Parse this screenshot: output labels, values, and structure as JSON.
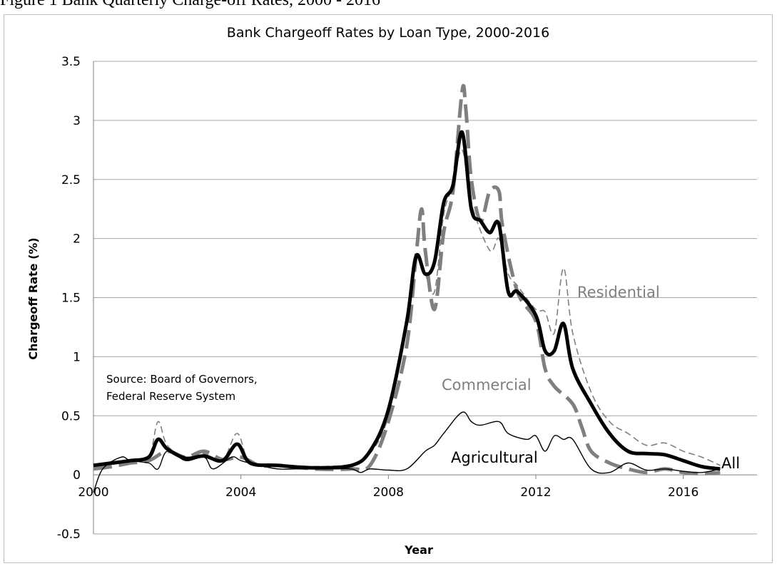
{
  "caption": "Figure 1 Bank Quarterly Charge-off Rates, 2000 - 2016",
  "note_lines": [
    "Source: Board of Governors,",
    "Federal Reserve System"
  ],
  "colors": {
    "black": "#000000",
    "gray": "#7f7f7f",
    "grid": "#a6a6a6"
  },
  "chart_data": {
    "type": "line",
    "title": "Bank Chargeoff Rates by Loan Type, 2000-2016",
    "xlabel": "Year",
    "ylabel": "Chargeoff Rate (%)",
    "xlim": [
      2000,
      2018
    ],
    "ylim": [
      -0.5,
      3.5
    ],
    "x_ticks": [
      2000,
      2004,
      2008,
      2012,
      2016
    ],
    "y_ticks": [
      -0.5,
      0,
      0.5,
      1,
      1.5,
      2,
      2.5,
      3,
      3.5
    ],
    "y_tick_labels": [
      "-0.5",
      "0",
      "0.5",
      "1",
      "1.5",
      "2",
      "2.5",
      "3",
      "3.5"
    ],
    "grid": "horizontal",
    "series": [
      {
        "name": "Residential",
        "color": "#7f7f7f",
        "style": "thin-dashed",
        "points": [
          [
            2000,
            0.08
          ],
          [
            2000.5,
            0.1
          ],
          [
            2001,
            0.12
          ],
          [
            2001.5,
            0.15
          ],
          [
            2001.75,
            0.45
          ],
          [
            2002,
            0.25
          ],
          [
            2002.5,
            0.15
          ],
          [
            2003,
            0.18
          ],
          [
            2003.5,
            0.12
          ],
          [
            2003.9,
            0.35
          ],
          [
            2004.25,
            0.1
          ],
          [
            2005,
            0.08
          ],
          [
            2006,
            0.07
          ],
          [
            2007,
            0.09
          ],
          [
            2007.5,
            0.18
          ],
          [
            2008,
            0.5
          ],
          [
            2008.5,
            1.35
          ],
          [
            2008.75,
            1.85
          ],
          [
            2009,
            1.7
          ],
          [
            2009.25,
            1.55
          ],
          [
            2009.5,
            2.2
          ],
          [
            2009.75,
            2.45
          ],
          [
            2010,
            2.75
          ],
          [
            2010.25,
            2.3
          ],
          [
            2010.75,
            1.9
          ],
          [
            2011,
            2.0
          ],
          [
            2011.25,
            1.7
          ],
          [
            2011.5,
            1.6
          ],
          [
            2012,
            1.4
          ],
          [
            2012.25,
            1.38
          ],
          [
            2012.5,
            1.2
          ],
          [
            2012.75,
            1.75
          ],
          [
            2013,
            1.2
          ],
          [
            2013.5,
            0.7
          ],
          [
            2014,
            0.45
          ],
          [
            2014.5,
            0.35
          ],
          [
            2015,
            0.25
          ],
          [
            2015.5,
            0.27
          ],
          [
            2016,
            0.2
          ],
          [
            2016.5,
            0.15
          ],
          [
            2017,
            0.08
          ]
        ]
      },
      {
        "name": "Commercial",
        "color": "#7f7f7f",
        "style": "thick-dashed",
        "points": [
          [
            2000,
            0.05
          ],
          [
            2000.5,
            0.07
          ],
          [
            2001,
            0.1
          ],
          [
            2001.5,
            0.12
          ],
          [
            2002,
            0.2
          ],
          [
            2002.5,
            0.15
          ],
          [
            2003,
            0.2
          ],
          [
            2003.5,
            0.13
          ],
          [
            2004,
            0.15
          ],
          [
            2004.5,
            0.08
          ],
          [
            2005,
            0.08
          ],
          [
            2006,
            0.05
          ],
          [
            2007,
            0.05
          ],
          [
            2007.5,
            0.08
          ],
          [
            2008,
            0.45
          ],
          [
            2008.5,
            1.1
          ],
          [
            2008.75,
            1.85
          ],
          [
            2008.9,
            2.25
          ],
          [
            2009,
            1.9
          ],
          [
            2009.25,
            1.4
          ],
          [
            2009.5,
            2.05
          ],
          [
            2009.75,
            2.4
          ],
          [
            2010,
            3.25
          ],
          [
            2010.1,
            3.1
          ],
          [
            2010.25,
            2.5
          ],
          [
            2010.5,
            2.15
          ],
          [
            2010.75,
            2.4
          ],
          [
            2011,
            2.4
          ],
          [
            2011.1,
            2.1
          ],
          [
            2011.5,
            1.55
          ],
          [
            2012,
            1.3
          ],
          [
            2012.25,
            0.9
          ],
          [
            2012.5,
            0.75
          ],
          [
            2013,
            0.6
          ],
          [
            2013.25,
            0.4
          ],
          [
            2013.5,
            0.2
          ],
          [
            2014,
            0.1
          ],
          [
            2014.5,
            0.05
          ],
          [
            2015,
            0.02
          ],
          [
            2015.5,
            0.05
          ],
          [
            2016,
            0.02
          ],
          [
            2016.5,
            0.01
          ],
          [
            2017,
            0.02
          ]
        ]
      },
      {
        "name": "All",
        "color": "#000000",
        "style": "thick-solid",
        "points": [
          [
            2000,
            0.08
          ],
          [
            2000.5,
            0.1
          ],
          [
            2001,
            0.12
          ],
          [
            2001.5,
            0.15
          ],
          [
            2001.75,
            0.3
          ],
          [
            2002,
            0.22
          ],
          [
            2002.5,
            0.14
          ],
          [
            2003,
            0.16
          ],
          [
            2003.5,
            0.12
          ],
          [
            2003.9,
            0.26
          ],
          [
            2004.25,
            0.1
          ],
          [
            2005,
            0.08
          ],
          [
            2006,
            0.06
          ],
          [
            2007,
            0.08
          ],
          [
            2007.5,
            0.2
          ],
          [
            2008,
            0.55
          ],
          [
            2008.5,
            1.3
          ],
          [
            2008.75,
            1.85
          ],
          [
            2009,
            1.7
          ],
          [
            2009.25,
            1.8
          ],
          [
            2009.5,
            2.3
          ],
          [
            2009.75,
            2.45
          ],
          [
            2010,
            2.9
          ],
          [
            2010.25,
            2.25
          ],
          [
            2010.5,
            2.15
          ],
          [
            2010.75,
            2.05
          ],
          [
            2011,
            2.12
          ],
          [
            2011.25,
            1.55
          ],
          [
            2011.5,
            1.55
          ],
          [
            2012,
            1.35
          ],
          [
            2012.25,
            1.05
          ],
          [
            2012.5,
            1.05
          ],
          [
            2012.75,
            1.28
          ],
          [
            2013,
            0.9
          ],
          [
            2013.5,
            0.6
          ],
          [
            2014,
            0.35
          ],
          [
            2014.5,
            0.2
          ],
          [
            2015,
            0.18
          ],
          [
            2015.5,
            0.17
          ],
          [
            2016,
            0.12
          ],
          [
            2016.5,
            0.07
          ],
          [
            2017,
            0.05
          ]
        ]
      },
      {
        "name": "Agricultural",
        "color": "#000000",
        "style": "thin-solid",
        "points": [
          [
            2000,
            -0.15
          ],
          [
            2000.25,
            0.05
          ],
          [
            2000.75,
            0.15
          ],
          [
            2001,
            0.12
          ],
          [
            2001.5,
            0.1
          ],
          [
            2001.75,
            0.05
          ],
          [
            2002,
            0.2
          ],
          [
            2002.5,
            0.12
          ],
          [
            2003,
            0.15
          ],
          [
            2003.25,
            0.05
          ],
          [
            2003.75,
            0.15
          ],
          [
            2004,
            0.12
          ],
          [
            2004.5,
            0.08
          ],
          [
            2005,
            0.05
          ],
          [
            2005.5,
            0.05
          ],
          [
            2006,
            0.05
          ],
          [
            2006.5,
            0.05
          ],
          [
            2007,
            0.05
          ],
          [
            2007.25,
            0.02
          ],
          [
            2007.5,
            0.05
          ],
          [
            2008,
            0.04
          ],
          [
            2008.5,
            0.05
          ],
          [
            2009,
            0.2
          ],
          [
            2009.25,
            0.25
          ],
          [
            2009.5,
            0.35
          ],
          [
            2010,
            0.53
          ],
          [
            2010.25,
            0.45
          ],
          [
            2010.5,
            0.42
          ],
          [
            2011,
            0.45
          ],
          [
            2011.25,
            0.35
          ],
          [
            2011.75,
            0.3
          ],
          [
            2012,
            0.33
          ],
          [
            2012.25,
            0.2
          ],
          [
            2012.5,
            0.33
          ],
          [
            2012.75,
            0.3
          ],
          [
            2013,
            0.3
          ],
          [
            2013.5,
            0.05
          ],
          [
            2014,
            0.02
          ],
          [
            2014.5,
            0.1
          ],
          [
            2015,
            0.04
          ],
          [
            2015.5,
            0.05
          ],
          [
            2016,
            0.03
          ],
          [
            2016.5,
            0.02
          ],
          [
            2017,
            0.05
          ]
        ]
      }
    ]
  }
}
